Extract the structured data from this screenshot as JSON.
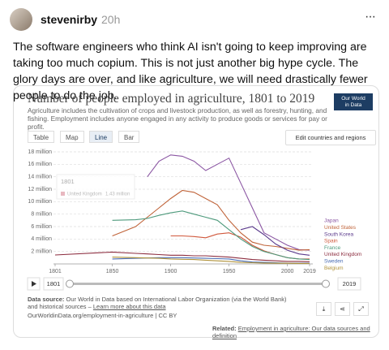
{
  "post": {
    "username": "stevenirby",
    "time": "20h",
    "more": "···",
    "text": "The software engineers who think AI isn't going to keep improving are taking too much copium. This is not just another big hype cycle. The glory days are over, and like agriculture, we will need drastically fewer people to do the job."
  },
  "card": {
    "subtitle": "Agriculture includes the cultivation of crops and livestock production, as well as forestry, hunting, and fishing. Employment includes anyone engaged in any activity to produce goods or services for pay or profit.",
    "logo": [
      "Our World",
      "in Data"
    ],
    "tabs": [
      "Table",
      "Map",
      "Line",
      "Bar"
    ],
    "edit_button": "Edit countries and regions",
    "source_label": "Data source:",
    "source_text": "Our World in Data based on International Labor Organization (via the World Bank) and historical sources –",
    "source_link": "Learn more about this data",
    "url_line": "OurWorldinData.org/employment-in-agriculture | CC BY",
    "related_label": "Related:",
    "related_link": "Employment in agriculture: Our data sources and definition"
  },
  "chart_data": {
    "type": "line",
    "title": "Number of people employed in agriculture, 1801 to 2019",
    "x": [
      1801,
      1850,
      1870,
      1880,
      1890,
      1900,
      1910,
      1920,
      1930,
      1940,
      1950,
      1960,
      1970,
      1980,
      1990,
      2000,
      2010,
      2019
    ],
    "xlim": [
      1801,
      2019
    ],
    "xticks": [
      1801,
      1850,
      1900,
      1950,
      2000,
      2019
    ],
    "ylim": [
      0,
      18.5
    ],
    "yticks": [
      {
        "value": 2,
        "label": "2 million"
      },
      {
        "value": 4,
        "label": "4 million"
      },
      {
        "value": 6,
        "label": "6 million"
      },
      {
        "value": 8,
        "label": "8 million"
      },
      {
        "value": 10,
        "label": "10 million"
      },
      {
        "value": 12,
        "label": "12 million"
      },
      {
        "value": 14,
        "label": "14 million"
      },
      {
        "value": 16,
        "label": "16 million"
      },
      {
        "value": 18,
        "label": "18 million"
      }
    ],
    "grid": true,
    "series": [
      {
        "name": "Japan",
        "color": "#8b56a3",
        "values": [
          null,
          null,
          null,
          14,
          16.5,
          17.5,
          17.3,
          16.5,
          15,
          16,
          17,
          13,
          9,
          5,
          4,
          3,
          2.3,
          2.2
        ]
      },
      {
        "name": "United States",
        "color": "#c0643a",
        "values": [
          null,
          4.5,
          6,
          7.5,
          9,
          10.5,
          11.8,
          11.5,
          10.5,
          9.5,
          7,
          5,
          3.5,
          3,
          2.8,
          2.5,
          2.2,
          2.3
        ]
      },
      {
        "name": "South Korea",
        "color": "#5b3a8c",
        "values": [
          null,
          null,
          null,
          null,
          null,
          null,
          null,
          null,
          null,
          null,
          null,
          5.5,
          6,
          4.7,
          3.2,
          2.2,
          1.6,
          1.4
        ]
      },
      {
        "name": "Spain",
        "color": "#d0583c",
        "values": [
          null,
          null,
          null,
          null,
          null,
          4.5,
          4.5,
          4.4,
          4.2,
          4.8,
          5,
          4.3,
          3,
          2.1,
          1.5,
          1,
          0.8,
          0.8
        ]
      },
      {
        "name": "France",
        "color": "#4e9a7c",
        "values": [
          null,
          7,
          7.1,
          7.3,
          7.8,
          8.2,
          8.5,
          8,
          7.5,
          7,
          5.5,
          4,
          2.8,
          2,
          1.5,
          1,
          0.8,
          0.7
        ]
      },
      {
        "name": "United Kingdom",
        "color": "#8c2d3f",
        "values": [
          1.43,
          1.9,
          1.7,
          1.6,
          1.5,
          1.4,
          1.4,
          1.3,
          1.3,
          1.2,
          1.1,
          0.9,
          0.7,
          0.6,
          0.5,
          0.4,
          0.4,
          0.35
        ],
        "value_labels": [
          "1.43 million",
          null,
          null,
          null,
          null,
          null,
          null,
          null,
          null,
          null,
          null,
          null,
          null,
          null,
          null,
          null,
          null,
          null
        ]
      },
      {
        "name": "Sweden",
        "color": "#4a6db3",
        "values": [
          null,
          0.8,
          0.9,
          0.95,
          1,
          1,
          1,
          0.95,
          0.9,
          0.85,
          0.8,
          0.5,
          0.3,
          0.25,
          0.2,
          0.12,
          0.1,
          0.1
        ]
      },
      {
        "name": "Belgium",
        "color": "#b0923a",
        "values": [
          null,
          1.1,
          1,
          0.95,
          0.9,
          0.8,
          0.75,
          0.7,
          0.6,
          0.5,
          0.4,
          0.25,
          0.2,
          0.15,
          0.12,
          0.1,
          0.08,
          0.06
        ]
      }
    ]
  }
}
